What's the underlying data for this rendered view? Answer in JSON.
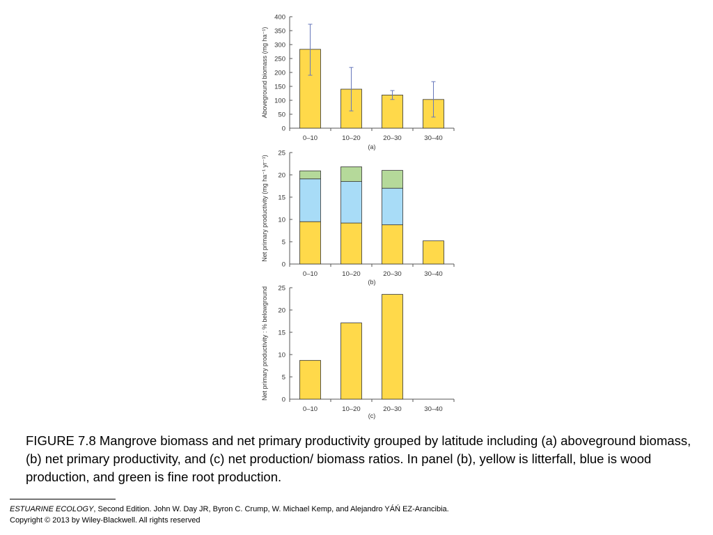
{
  "colors": {
    "litterfall": "#FFD94A",
    "wood": "#A8DCF7",
    "fine_root": "#B5D99A",
    "error_bar": "#6677BB",
    "axis": "#555555"
  },
  "chart_data": [
    {
      "type": "bar",
      "panel_label": "(a)",
      "categories": [
        "0–10",
        "10–20",
        "20–30",
        "30–40"
      ],
      "values": [
        283,
        140,
        119,
        103
      ],
      "error_low": [
        190,
        62,
        103,
        40
      ],
      "error_high": [
        373,
        218,
        135,
        167
      ],
      "ylabel": "Aboveground biomass (mg ha⁻¹)",
      "ylim": [
        0,
        400
      ],
      "yticks": [
        0,
        50,
        100,
        150,
        200,
        250,
        300,
        350,
        400
      ],
      "grid": false
    },
    {
      "type": "bar",
      "stacked": true,
      "panel_label": "(b)",
      "categories": [
        "0–10",
        "10–20",
        "20–30",
        "30–40"
      ],
      "series": [
        {
          "color_key": "litterfall",
          "values": [
            9.5,
            9.2,
            8.8,
            5.2
          ]
        },
        {
          "color_key": "wood",
          "values": [
            9.6,
            9.3,
            8.2,
            0
          ]
        },
        {
          "color_key": "fine_root",
          "values": [
            1.8,
            3.3,
            4.0,
            0
          ]
        }
      ],
      "ylabel": "Net primary productivity (mg ha⁻¹ yr⁻¹)",
      "ylim": [
        0,
        25
      ],
      "yticks": [
        0,
        5,
        10,
        15,
        20,
        25
      ],
      "grid": false
    },
    {
      "type": "bar",
      "panel_label": "(c)",
      "categories": [
        "0–10",
        "10–20",
        "20–30",
        "30–40"
      ],
      "values": [
        8.7,
        17.1,
        23.5,
        null
      ],
      "ylabel": "Net primary productivity : % belowground",
      "ylim": [
        0,
        25
      ],
      "yticks": [
        0,
        5,
        10,
        15,
        20,
        25
      ],
      "grid": false
    }
  ],
  "caption": {
    "text": "FIGURE 7.8  Mangrove biomass and net primary productivity grouped by latitude including (a) aboveground biomass, (b) net primary productivity, and (c) net production/ biomass ratios. In panel (b), yellow is litterfall, blue is wood production, and green is fine root production."
  },
  "citation": {
    "book_title": "ESTUARINE ECOLOGY",
    "details": ", Second Edition. John W. Day JR, Byron C. Crump, W. Michael Kemp, and Alejandro YÁŃ EZ-Arancibia.",
    "copyright": "Copyright © 2013 by Wiley-Blackwell. All rights reserved"
  }
}
